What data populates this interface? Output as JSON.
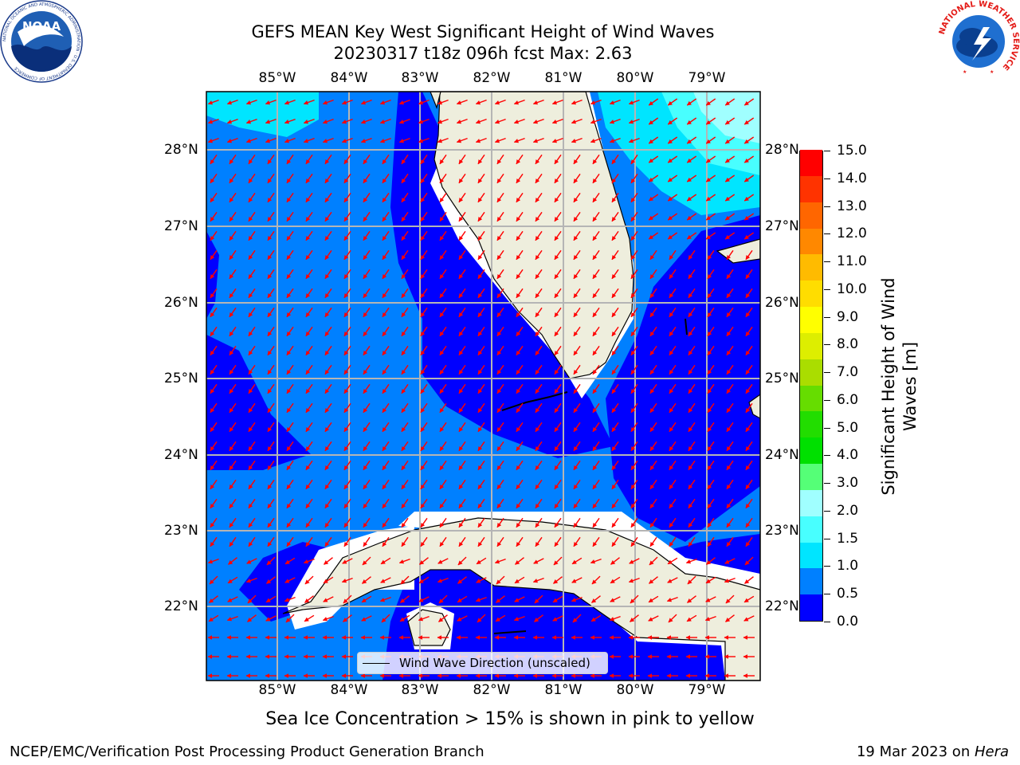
{
  "title": {
    "line1": "GEFS MEAN Key West Significant Height of Wind Waves",
    "line2": "20230317 t18z 096h fcst   Max: 2.63"
  },
  "map": {
    "lon_ticks": [
      "85°W",
      "84°W",
      "83°W",
      "82°W",
      "81°W",
      "80°W",
      "79°W"
    ],
    "lat_ticks": [
      "28°N",
      "27°N",
      "26°N",
      "25°N",
      "24°N",
      "23°N",
      "22°N"
    ],
    "extent": {
      "lon": [
        -86.0,
        -78.3
      ],
      "lat": [
        21.0,
        28.75
      ]
    },
    "vector_color": "#ff0000",
    "land_color": "#eeeedd"
  },
  "legend": {
    "label": "Wind Wave Direction (unscaled)"
  },
  "colorbar": {
    "title": "Significant Height of Wind Waves [m]",
    "title_line1": "Significant Height of Wind",
    "title_line2": "Waves [m]",
    "ticks": [
      "15.0",
      "14.0",
      "13.0",
      "12.0",
      "11.0",
      "10.0",
      "9.0",
      "8.0",
      "7.0",
      "6.0",
      "5.0",
      "4.0",
      "3.0",
      "2.0",
      "1.5",
      "1.0",
      "0.5",
      "0.0"
    ],
    "colors": [
      "#0000ff",
      "#0080ff",
      "#00e5ff",
      "#48ffff",
      "#a0ffff",
      "#55ff77",
      "#00e000",
      "#22dd00",
      "#66dd00",
      "#aadd00",
      "#ddee00",
      "#ffff00",
      "#ffdd00",
      "#ffbb00",
      "#ff8800",
      "#ff6600",
      "#ff3300",
      "#ff0000"
    ]
  },
  "footer": {
    "note": "Sea Ice Concentration > 15% is shown in pink to yellow",
    "left": "NCEP/EMC/Verification Post Processing Product Generation Branch",
    "right_date": "19 Mar 2023 on ",
    "right_host": "Hera"
  },
  "logos": {
    "noaa_text": "NOAA",
    "noaa_ring": "NATIONAL OCEANIC AND ATMOSPHERIC ADMINISTRATION · U.S. DEPARTMENT OF COMMERCE",
    "nws_ring": "NATIONAL WEATHER SERVICE"
  }
}
